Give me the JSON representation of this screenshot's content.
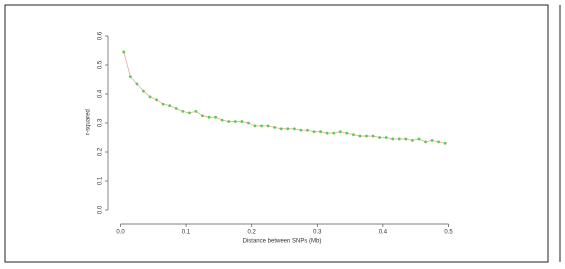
{
  "chart_data": {
    "type": "line",
    "x_label": "Distance between SNPs (Mb)",
    "y_label": "r-squared",
    "x": [
      0.005,
      0.015,
      0.025,
      0.035,
      0.045,
      0.055,
      0.065,
      0.075,
      0.085,
      0.095,
      0.105,
      0.115,
      0.125,
      0.135,
      0.145,
      0.155,
      0.165,
      0.175,
      0.185,
      0.195,
      0.205,
      0.215,
      0.225,
      0.235,
      0.245,
      0.255,
      0.265,
      0.275,
      0.285,
      0.295,
      0.305,
      0.315,
      0.325,
      0.335,
      0.345,
      0.355,
      0.365,
      0.375,
      0.385,
      0.395,
      0.405,
      0.415,
      0.425,
      0.435,
      0.445,
      0.455,
      0.465,
      0.475,
      0.485,
      0.495
    ],
    "values": [
      0.545,
      0.46,
      0.435,
      0.41,
      0.39,
      0.38,
      0.365,
      0.36,
      0.35,
      0.34,
      0.335,
      0.34,
      0.325,
      0.32,
      0.32,
      0.31,
      0.305,
      0.305,
      0.305,
      0.3,
      0.29,
      0.29,
      0.29,
      0.285,
      0.28,
      0.28,
      0.28,
      0.275,
      0.275,
      0.27,
      0.27,
      0.265,
      0.265,
      0.27,
      0.265,
      0.26,
      0.255,
      0.255,
      0.255,
      0.25,
      0.25,
      0.245,
      0.245,
      0.245,
      0.24,
      0.245,
      0.235,
      0.24,
      0.235,
      0.23
    ],
    "line_color": "#eaa6a6",
    "marker_color": "#5ccc48",
    "xlim": [
      0,
      0.5
    ],
    "ylim": [
      0,
      0.6
    ],
    "xticks": [
      {
        "value": 0,
        "label": "0.0"
      },
      0.1,
      0.2,
      0.3,
      0.4,
      0.5
    ],
    "yticks": [
      {
        "value": 0,
        "label": "0.0"
      },
      0.1,
      0.2,
      0.3,
      0.4,
      0.5,
      0.6
    ]
  }
}
